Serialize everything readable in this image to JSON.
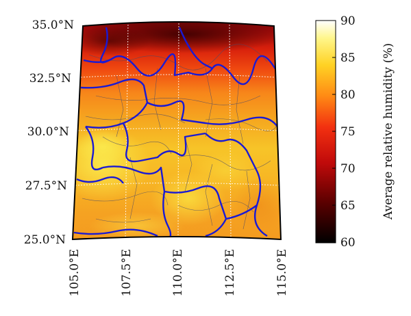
{
  "map": {
    "lat_labels": [
      "35.0°N",
      "32.5°N",
      "30.0°N",
      "27.5°N",
      "25.0°N"
    ],
    "lon_labels": [
      "105.0°E",
      "107.5°E",
      "110.0°E",
      "112.5°E",
      "115.0°E"
    ],
    "extent": {
      "lon_min": 105.0,
      "lon_max": 115.0,
      "lat_min": 25.0,
      "lat_max": 35.0
    },
    "gridlines": true,
    "province_border_color": "#1a1ad4",
    "county_border_color": "#4a4a6a"
  },
  "colorbar": {
    "title": "Average relative humidity (%)",
    "ticks": [
      "90",
      "85",
      "80",
      "75",
      "70",
      "65",
      "60"
    ],
    "range": [
      60,
      90
    ],
    "colormap": "hot",
    "colors": [
      "#000000",
      "#7a0000",
      "#e01010",
      "#ff7a10",
      "#ffd020",
      "#ffff9a",
      "#ffffff"
    ]
  }
}
